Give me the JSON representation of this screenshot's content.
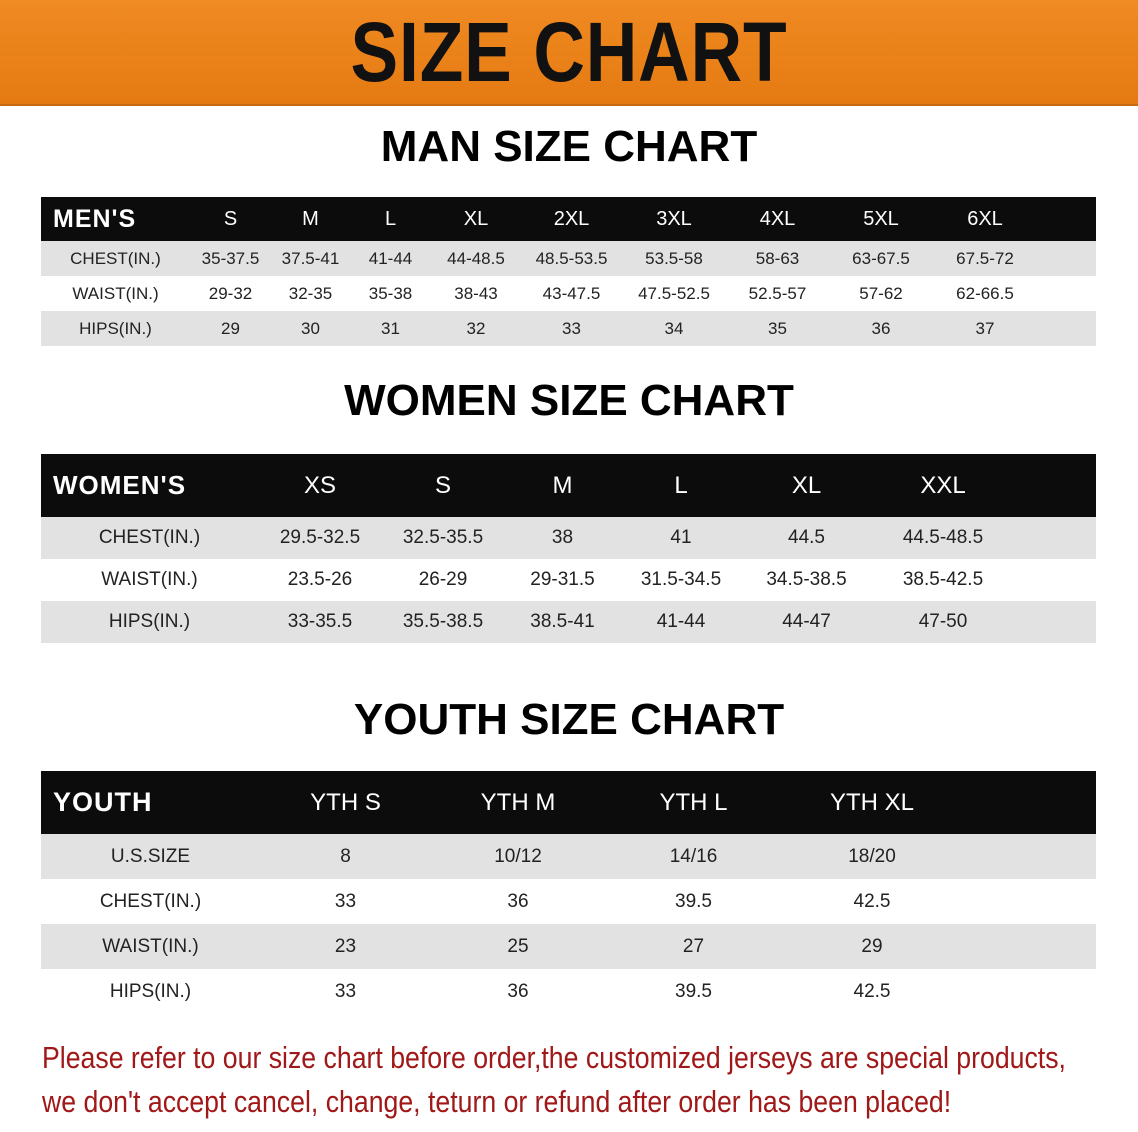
{
  "banner": {
    "title": "SIZE CHART",
    "color": "#e9801a"
  },
  "men": {
    "title": "MAN SIZE CHART",
    "header": [
      "MEN'S",
      "S",
      "M",
      "L",
      "XL",
      "2XL",
      "3XL",
      "4XL",
      "5XL",
      "6XL"
    ],
    "rows": [
      [
        "CHEST(IN.)",
        "35-37.5",
        "37.5-41",
        "41-44",
        "44-48.5",
        "48.5-53.5",
        "53.5-58",
        "58-63",
        "63-67.5",
        "67.5-72"
      ],
      [
        "WAIST(IN.)",
        "29-32",
        "32-35",
        "35-38",
        "38-43",
        "43-47.5",
        "47.5-52.5",
        "52.5-57",
        "57-62",
        "62-66.5"
      ],
      [
        "HIPS(IN.)",
        "29",
        "30",
        "31",
        "32",
        "33",
        "34",
        "35",
        "36",
        "37"
      ]
    ]
  },
  "women": {
    "title": "WOMEN SIZE CHART",
    "header": [
      "WOMEN'S",
      "XS",
      "S",
      "M",
      "L",
      "XL",
      "XXL"
    ],
    "rows": [
      [
        "CHEST(IN.)",
        "29.5-32.5",
        "32.5-35.5",
        "38",
        "41",
        "44.5",
        "44.5-48.5"
      ],
      [
        "WAIST(IN.)",
        "23.5-26",
        "26-29",
        "29-31.5",
        "31.5-34.5",
        "34.5-38.5",
        "38.5-42.5"
      ],
      [
        "HIPS(IN.)",
        "33-35.5",
        "35.5-38.5",
        "38.5-41",
        "41-44",
        "44-47",
        "47-50"
      ]
    ]
  },
  "youth": {
    "title": "YOUTH SIZE CHART",
    "header": [
      "YOUTH",
      "YTH S",
      "YTH M",
      "YTH L",
      "YTH XL"
    ],
    "rows": [
      [
        "U.S.SIZE",
        "8",
        "10/12",
        "14/16",
        "18/20"
      ],
      [
        "CHEST(IN.)",
        "33",
        "36",
        "39.5",
        "42.5"
      ],
      [
        "WAIST(IN.)",
        "23",
        "25",
        "27",
        "29"
      ],
      [
        "HIPS(IN.)",
        "33",
        "36",
        "39.5",
        "42.5"
      ]
    ]
  },
  "note": {
    "line1": "Please refer to our size chart before order,the customized jerseys are special products,",
    "line2": "we don't accept cancel, change, teturn or refund after order has been placed!",
    "color": "#a01818"
  }
}
